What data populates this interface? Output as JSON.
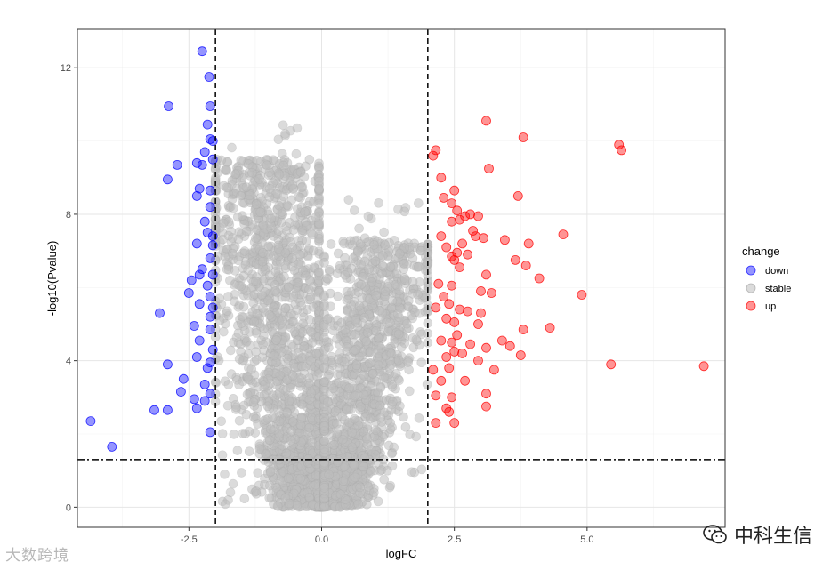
{
  "chart_data": {
    "type": "scatter",
    "title": "",
    "xlabel": "logFC",
    "ylabel": "-log10(Pvalue)",
    "xlim": [
      -4.6,
      7.6
    ],
    "ylim": [
      -0.55,
      13.05
    ],
    "x_ticks": [
      -2.5,
      0.0,
      2.5,
      5.0
    ],
    "x_tick_labels": [
      "-2.5",
      "0.0",
      "2.5",
      "5.0"
    ],
    "y_ticks": [
      0,
      4,
      8,
      12
    ],
    "y_tick_labels": [
      "0",
      "4",
      "8",
      "12"
    ],
    "grid": true,
    "thresholds": {
      "logFC": [
        -2,
        2
      ],
      "neg_log10_p": 1.3
    },
    "legend": {
      "title": "change",
      "position": "right"
    },
    "series": [
      {
        "name": "down",
        "color": "#0000FF",
        "points": [
          [
            -2.25,
            12.45
          ],
          [
            -2.12,
            11.75
          ],
          [
            -2.1,
            10.95
          ],
          [
            -2.88,
            10.95
          ],
          [
            -2.15,
            10.45
          ],
          [
            -2.1,
            10.05
          ],
          [
            -2.05,
            10.0
          ],
          [
            -2.2,
            9.7
          ],
          [
            -2.05,
            9.5
          ],
          [
            -2.72,
            9.35
          ],
          [
            -2.35,
            9.4
          ],
          [
            -2.25,
            9.35
          ],
          [
            -2.9,
            8.95
          ],
          [
            -2.3,
            8.7
          ],
          [
            -2.1,
            8.65
          ],
          [
            -2.35,
            8.5
          ],
          [
            -2.1,
            8.2
          ],
          [
            -2.2,
            7.8
          ],
          [
            -2.15,
            7.5
          ],
          [
            -2.05,
            7.4
          ],
          [
            -2.35,
            7.2
          ],
          [
            -2.05,
            7.15
          ],
          [
            -2.1,
            6.8
          ],
          [
            -2.25,
            6.5
          ],
          [
            -2.05,
            6.35
          ],
          [
            -2.3,
            6.35
          ],
          [
            -2.45,
            6.2
          ],
          [
            -2.15,
            6.05
          ],
          [
            -2.5,
            5.85
          ],
          [
            -2.1,
            5.75
          ],
          [
            -2.3,
            5.55
          ],
          [
            -2.05,
            5.45
          ],
          [
            -3.05,
            5.3
          ],
          [
            -2.1,
            5.2
          ],
          [
            -2.4,
            4.95
          ],
          [
            -2.1,
            4.85
          ],
          [
            -2.3,
            4.55
          ],
          [
            -2.05,
            4.3
          ],
          [
            -2.35,
            4.1
          ],
          [
            -2.1,
            3.95
          ],
          [
            -2.9,
            3.9
          ],
          [
            -2.15,
            3.8
          ],
          [
            -2.6,
            3.5
          ],
          [
            -2.2,
            3.35
          ],
          [
            -2.1,
            3.1
          ],
          [
            -2.65,
            3.15
          ],
          [
            -2.4,
            2.95
          ],
          [
            -2.2,
            2.9
          ],
          [
            -3.15,
            2.65
          ],
          [
            -2.9,
            2.65
          ],
          [
            -2.35,
            2.7
          ],
          [
            -2.1,
            2.05
          ],
          [
            -4.35,
            2.35
          ],
          [
            -3.95,
            1.65
          ]
        ]
      },
      {
        "name": "stable",
        "color": "#BEBEBE",
        "points": []
      },
      {
        "name": "up",
        "color": "#FF0000",
        "points": [
          [
            3.1,
            10.55
          ],
          [
            3.8,
            10.1
          ],
          [
            5.6,
            9.9
          ],
          [
            5.65,
            9.75
          ],
          [
            2.15,
            9.75
          ],
          [
            2.1,
            9.6
          ],
          [
            3.15,
            9.25
          ],
          [
            2.25,
            9.0
          ],
          [
            2.5,
            8.65
          ],
          [
            3.7,
            8.5
          ],
          [
            2.3,
            8.45
          ],
          [
            2.45,
            8.3
          ],
          [
            2.55,
            8.1
          ],
          [
            2.8,
            8.0
          ],
          [
            2.7,
            7.95
          ],
          [
            2.95,
            7.95
          ],
          [
            2.6,
            7.85
          ],
          [
            2.45,
            7.8
          ],
          [
            2.85,
            7.55
          ],
          [
            2.25,
            7.4
          ],
          [
            4.55,
            7.45
          ],
          [
            2.9,
            7.4
          ],
          [
            3.05,
            7.35
          ],
          [
            3.45,
            7.3
          ],
          [
            2.65,
            7.2
          ],
          [
            3.9,
            7.2
          ],
          [
            2.35,
            7.1
          ],
          [
            2.55,
            6.95
          ],
          [
            2.75,
            6.9
          ],
          [
            2.45,
            6.85
          ],
          [
            2.5,
            6.75
          ],
          [
            3.65,
            6.75
          ],
          [
            2.6,
            6.55
          ],
          [
            3.85,
            6.6
          ],
          [
            3.1,
            6.35
          ],
          [
            4.1,
            6.25
          ],
          [
            2.2,
            6.1
          ],
          [
            2.45,
            6.05
          ],
          [
            3.0,
            5.9
          ],
          [
            3.2,
            5.85
          ],
          [
            4.9,
            5.8
          ],
          [
            2.3,
            5.75
          ],
          [
            2.4,
            5.55
          ],
          [
            2.15,
            5.45
          ],
          [
            2.6,
            5.4
          ],
          [
            2.75,
            5.35
          ],
          [
            3.0,
            5.3
          ],
          [
            2.35,
            5.15
          ],
          [
            2.5,
            5.05
          ],
          [
            2.95,
            5.0
          ],
          [
            3.8,
            4.85
          ],
          [
            4.3,
            4.9
          ],
          [
            2.55,
            4.7
          ],
          [
            2.25,
            4.55
          ],
          [
            2.45,
            4.5
          ],
          [
            2.8,
            4.45
          ],
          [
            3.1,
            4.35
          ],
          [
            3.55,
            4.4
          ],
          [
            3.4,
            4.55
          ],
          [
            2.65,
            4.2
          ],
          [
            2.35,
            4.1
          ],
          [
            2.5,
            4.25
          ],
          [
            3.75,
            4.15
          ],
          [
            2.95,
            4.0
          ],
          [
            2.4,
            3.8
          ],
          [
            2.1,
            3.75
          ],
          [
            3.25,
            3.75
          ],
          [
            5.45,
            3.9
          ],
          [
            7.2,
            3.85
          ],
          [
            2.7,
            3.45
          ],
          [
            2.25,
            3.45
          ],
          [
            3.1,
            3.1
          ],
          [
            2.15,
            3.05
          ],
          [
            2.45,
            3.0
          ],
          [
            2.35,
            2.7
          ],
          [
            3.1,
            2.75
          ],
          [
            2.4,
            2.6
          ],
          [
            2.5,
            2.3
          ],
          [
            2.15,
            2.3
          ]
        ]
      }
    ]
  },
  "watermarks": {
    "left": "大数跨境",
    "right": "中科生信",
    "right_icon": "wechat-icon"
  }
}
